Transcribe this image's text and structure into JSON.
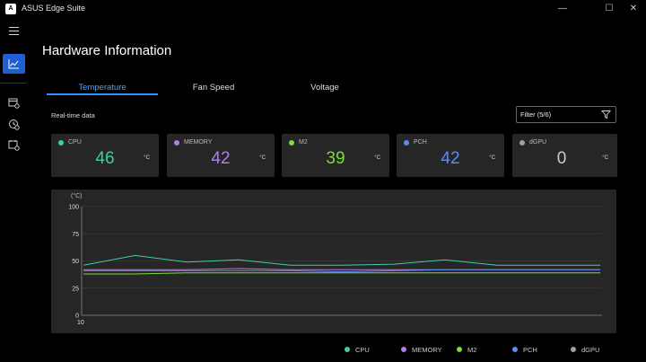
{
  "app": {
    "title": "ASUS Edge Suite",
    "logo_text": "A"
  },
  "window": {
    "minimize": "—",
    "maximize": "☐",
    "close": "✕"
  },
  "page_title": "Hardware Information",
  "tabs": [
    {
      "label": "Temperature",
      "active": true
    },
    {
      "label": "Fan Speed",
      "active": false
    },
    {
      "label": "Voltage",
      "active": false
    }
  ],
  "realtime_label": "Real-time data",
  "filter": {
    "label": "Filter (5/6)"
  },
  "cards": [
    {
      "name": "CPU",
      "value": "46",
      "unit": "°C",
      "color": "#3ecfa0"
    },
    {
      "name": "MEMORY",
      "value": "42",
      "unit": "°C",
      "color": "#b07ee8"
    },
    {
      "name": "M2",
      "value": "39",
      "unit": "°C",
      "color": "#7ddc3a"
    },
    {
      "name": "PCH",
      "value": "42",
      "unit": "°C",
      "color": "#5b8cf0"
    },
    {
      "name": "dGPU",
      "value": "0",
      "unit": "°C",
      "color": "#a0a0a0"
    }
  ],
  "chart_data": {
    "type": "line",
    "ylabel": "(°C)",
    "ylim": [
      0,
      100
    ],
    "yticks": [
      "100",
      "75",
      "50",
      "25",
      "0"
    ],
    "x_start_label": "10",
    "series": [
      {
        "name": "CPU",
        "color": "#3ecfa0",
        "values": [
          46,
          55,
          49,
          51,
          46,
          46,
          47,
          51,
          46,
          46,
          46
        ]
      },
      {
        "name": "MEMORY",
        "color": "#b07ee8",
        "values": [
          42,
          42,
          42,
          43,
          42,
          42,
          42,
          42,
          42,
          42,
          42
        ]
      },
      {
        "name": "M2",
        "color": "#7ddc3a",
        "values": [
          38,
          38,
          39,
          39,
          39,
          39,
          39,
          39,
          39,
          39,
          39
        ]
      },
      {
        "name": "PCH",
        "color": "#5b8cf0",
        "values": [
          41,
          41,
          41,
          41,
          41,
          40,
          41,
          42,
          42,
          42,
          42
        ]
      }
    ]
  },
  "legend": [
    {
      "name": "CPU",
      "color": "#3ecfa0"
    },
    {
      "name": "MEMORY",
      "color": "#b07ee8"
    },
    {
      "name": "M2",
      "color": "#7ddc3a"
    },
    {
      "name": "PCH",
      "color": "#5b8cf0"
    },
    {
      "name": "dGPU",
      "color": "#a0a0a0"
    }
  ]
}
